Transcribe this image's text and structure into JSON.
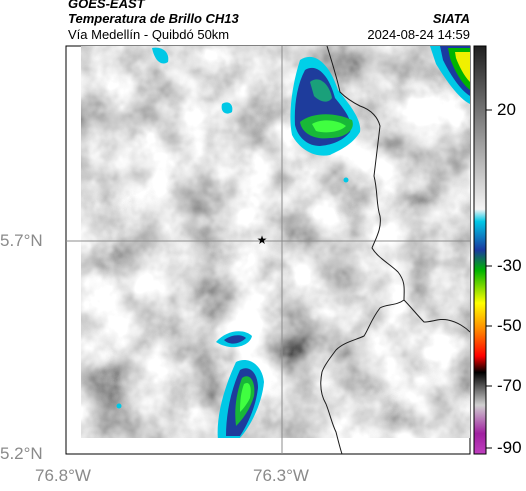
{
  "header": {
    "satellite": "GOES-EAST",
    "title": "Temperatura de Brillo CH13",
    "subtitle": "Vía Medellín - Quibdó 50km",
    "organization": "SIATA",
    "datetime": "2024-08-24 14:59"
  },
  "map": {
    "lat_labels": [
      "5.7°N",
      "5.2°N"
    ],
    "lon_labels": [
      "76.8°W",
      "76.3°W"
    ],
    "marker": "star-marker"
  },
  "colorbar": {
    "ticks": [
      "20",
      "-30",
      "-50",
      "-70",
      "-90"
    ],
    "colors": [
      "#303030",
      "#ffffff",
      "#00c8e6",
      "#0a2a8a",
      "#00c800",
      "#ffff00",
      "#ff8000",
      "#ff0000",
      "#000000",
      "#c0c0c0",
      "#a020a0"
    ]
  }
}
